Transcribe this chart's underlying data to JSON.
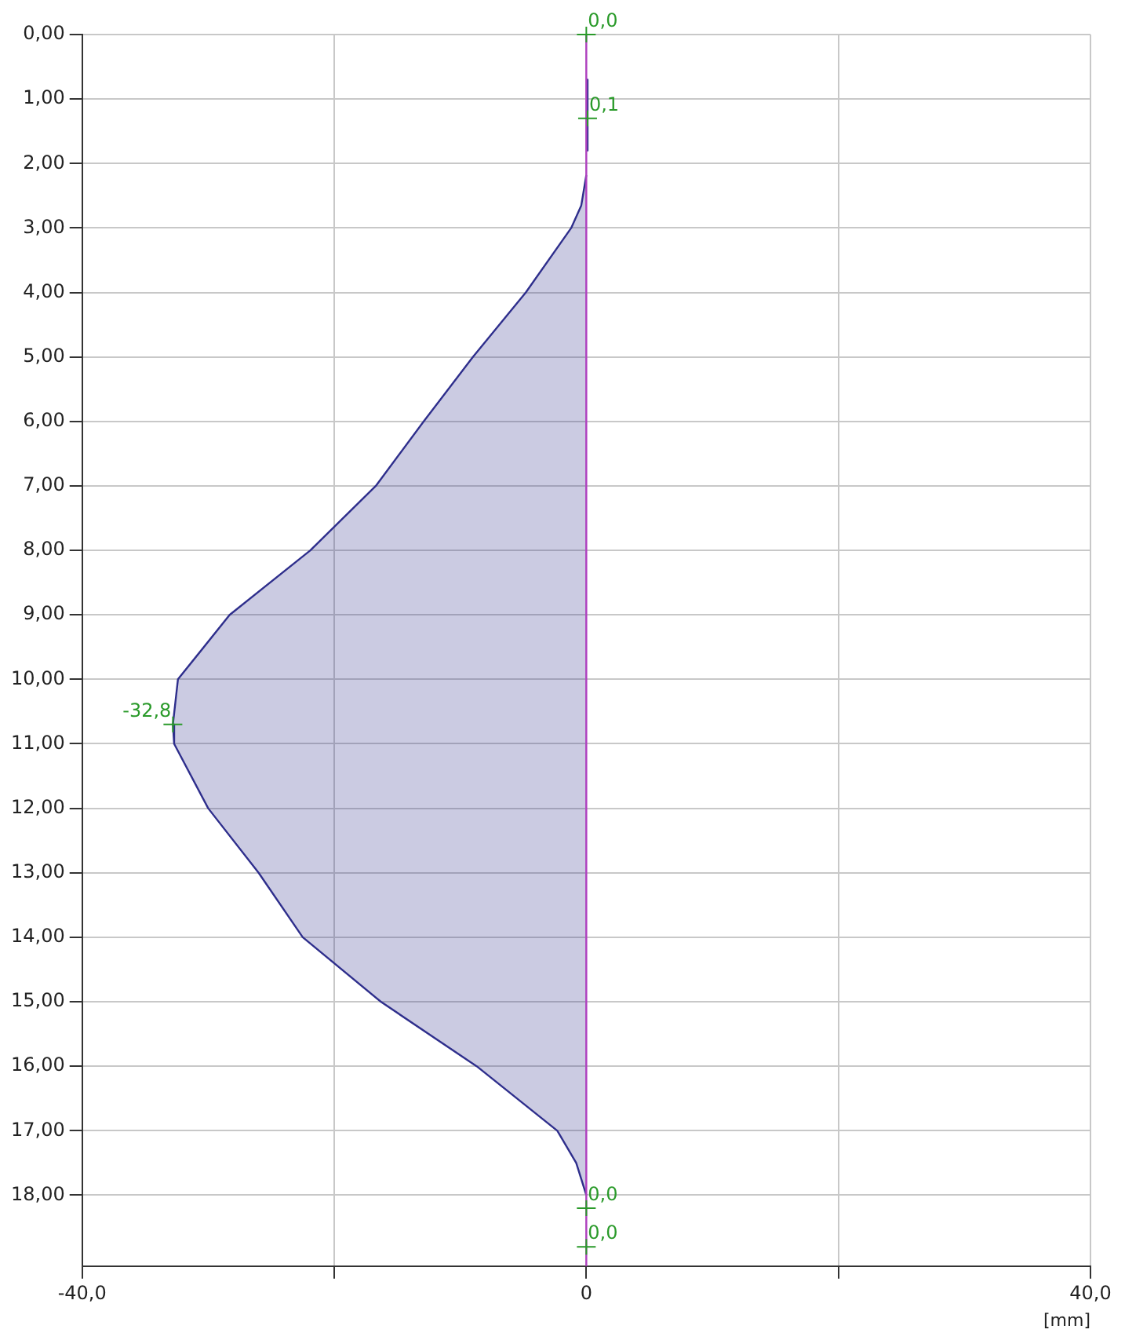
{
  "chart_data": {
    "type": "area",
    "orientation": "horizontal",
    "xlabel": "[mm]",
    "x": [
      0.7,
      1.8,
      2.1,
      2.18,
      2.65,
      3,
      4,
      5,
      6,
      7,
      8,
      9,
      10,
      10.7,
      11,
      12,
      13,
      14,
      15,
      16,
      17,
      17.5,
      18
    ],
    "series": [
      {
        "color": "#2e2e8c",
        "values": [
          0.1,
          0.1,
          null,
          0,
          -0.4,
          -1.2,
          -4.8,
          -9.0,
          -12.9,
          -16.7,
          -21.9,
          -28.3,
          -32.4,
          -32.8,
          -32.7,
          -30.0,
          -26.0,
          -22.5,
          -16.3,
          -8.7,
          -2.3,
          -0.8,
          0
        ]
      }
    ],
    "xlim": [
      -40,
      40
    ],
    "xticks": [
      {
        "value": -40,
        "label": "-40,0"
      },
      {
        "value": -20,
        "label": null
      },
      0,
      {
        "value": 20,
        "label": null
      },
      {
        "value": 40,
        "label": "40,0"
      }
    ],
    "ylim": [
      19.1,
      0
    ],
    "yticks": [
      {
        "value": 0,
        "label": "0,00"
      },
      {
        "value": 1,
        "label": "1,00"
      },
      {
        "value": 2,
        "label": "2,00"
      },
      {
        "value": 3,
        "label": "3,00"
      },
      {
        "value": 4,
        "label": "4,00"
      },
      {
        "value": 5,
        "label": "5,00"
      },
      {
        "value": 6,
        "label": "6,00"
      },
      {
        "value": 7,
        "label": "7,00"
      },
      {
        "value": 8,
        "label": "8,00"
      },
      {
        "value": 9,
        "label": "9,00"
      },
      {
        "value": 10,
        "label": "10,00"
      },
      {
        "value": 11,
        "label": "11,00"
      },
      {
        "value": 12,
        "label": "12,00"
      },
      {
        "value": 13,
        "label": "13,00"
      },
      {
        "value": 14,
        "label": "14,00"
      },
      {
        "value": 15,
        "label": "15,00"
      },
      {
        "value": 16,
        "label": "16,00"
      },
      {
        "value": 17,
        "label": "17,00"
      },
      {
        "value": 18,
        "label": "18,00"
      }
    ],
    "ref_lines": [
      {
        "axis": "x",
        "value": 0,
        "color": "#b040c0"
      }
    ],
    "annotations": [
      {
        "text": "0,0",
        "x": 0,
        "y": 0
      },
      {
        "text": "0,1",
        "x": 0.1,
        "y": 1.3
      },
      {
        "text": "-32,8",
        "x": -32.8,
        "y": 10.7
      },
      {
        "text": "0,0",
        "x": 0,
        "y": 18.2
      },
      {
        "text": "0,0",
        "x": 0,
        "y": 18.8
      }
    ],
    "grid": true,
    "legend": false
  }
}
